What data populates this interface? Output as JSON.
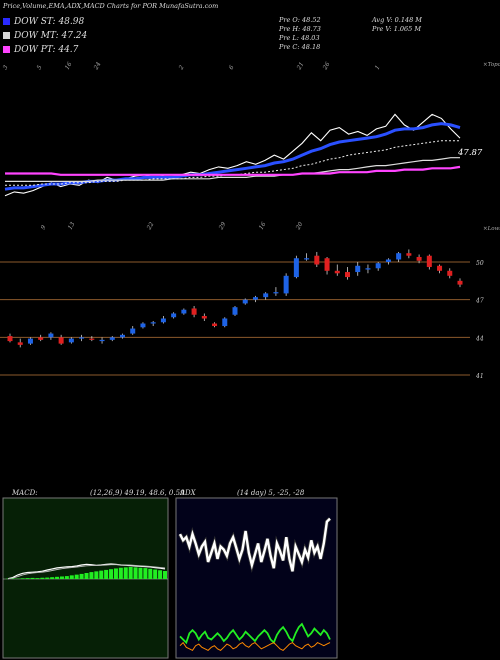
{
  "header": {
    "title": "Price,Volume,EMA,ADX,MACD Charts for POR MunafaSutra.com"
  },
  "legend": [
    {
      "label": "DOW ST: 48.98",
      "color": "#2a2aff"
    },
    {
      "label": "DOW MT: 47.24",
      "color": "#d8d8d8"
    },
    {
      "label": "DOW PT: 44.7",
      "color": "#ff44ff"
    }
  ],
  "prev_info": {
    "open": "Pre O: 48.52",
    "high": "Pre H: 48.73",
    "low": "Pre L: 48.03",
    "close": "Pre C: 48.18",
    "avg_vol": "Avg V: 0.148 M",
    "prev_vol": "Pre V: 1.065 M"
  },
  "colors": {
    "bull": "#1e63e6",
    "bear": "#e02020",
    "ema_short": "#2a50ff",
    "ema_pt": "#ff44ff",
    "hline": "#8b5a2b",
    "macd_fill": "#22ee22",
    "adx_green": "#22ee22",
    "adx_orange": "#ff8800",
    "panel_bg": "#062006",
    "adx_bg": "#02021a"
  },
  "chart_data": [
    {
      "type": "line",
      "panel": "ema",
      "corner_label": "×Topo",
      "last_label": "47.87",
      "date_labels_top": [
        "3",
        "5",
        "16",
        "24",
        "2",
        "6",
        "21",
        "26",
        "1"
      ],
      "date_labels_bottom": [
        "9",
        "13",
        "22",
        "29",
        "16",
        "20"
      ],
      "series": [
        {
          "values": [
            44.2,
            44.5,
            44.4,
            44.6,
            44.9,
            45.2,
            44.9,
            45.1,
            45.0,
            45.4,
            45.2,
            45.6,
            45.4,
            45.5,
            45.7,
            45.8,
            45.6,
            45.7,
            45.5,
            45.8,
            46.0,
            45.9,
            46.2,
            46.4,
            46.3,
            46.5,
            46.8,
            46.6,
            46.9,
            47.3,
            47.0,
            47.6,
            48.2,
            49.0,
            48.4,
            49.2,
            49.4,
            48.9,
            49.1,
            48.8,
            49.3,
            49.5,
            50.4,
            49.6,
            49.2,
            49.8,
            50.4,
            50.1,
            49.3,
            48.6
          ]
        },
        {
          "values": [
            44.7,
            44.8,
            44.8,
            44.9,
            45.0,
            45.1,
            45.1,
            45.2,
            45.2,
            45.3,
            45.3,
            45.4,
            45.4,
            45.5,
            45.5,
            45.6,
            45.6,
            45.6,
            45.6,
            45.7,
            45.8,
            45.8,
            45.9,
            46.0,
            46.1,
            46.2,
            46.3,
            46.4,
            46.5,
            46.7,
            46.8,
            47.0,
            47.3,
            47.6,
            47.8,
            48.1,
            48.3,
            48.4,
            48.5,
            48.6,
            48.7,
            48.9,
            49.2,
            49.3,
            49.3,
            49.4,
            49.6,
            49.7,
            49.6,
            49.4
          ]
        },
        {
          "values": [
            45.0,
            45.0,
            45.0,
            45.0,
            45.1,
            45.1,
            45.1,
            45.2,
            45.2,
            45.2,
            45.3,
            45.3,
            45.3,
            45.4,
            45.4,
            45.4,
            45.5,
            45.5,
            45.5,
            45.5,
            45.6,
            45.6,
            45.7,
            45.7,
            45.8,
            45.8,
            45.9,
            46.0,
            46.0,
            46.1,
            46.2,
            46.3,
            46.5,
            46.6,
            46.8,
            47.0,
            47.1,
            47.3,
            47.4,
            47.5,
            47.6,
            47.7,
            47.9,
            48.0,
            48.1,
            48.2,
            48.3,
            48.4,
            48.4,
            48.4
          ]
        },
        {
          "values": [
            45.3,
            45.3,
            45.3,
            45.3,
            45.3,
            45.3,
            45.3,
            45.3,
            45.3,
            45.3,
            45.4,
            45.4,
            45.4,
            45.4,
            45.4,
            45.4,
            45.4,
            45.4,
            45.5,
            45.5,
            45.5,
            45.5,
            45.5,
            45.6,
            45.6,
            45.6,
            45.6,
            45.7,
            45.7,
            45.7,
            45.8,
            45.8,
            45.9,
            45.9,
            46.0,
            46.1,
            46.2,
            46.2,
            46.3,
            46.4,
            46.5,
            46.5,
            46.6,
            46.7,
            46.8,
            46.9,
            46.9,
            47.0,
            47.1,
            47.1
          ]
        },
        {
          "values": [
            45.9,
            45.9,
            45.9,
            45.9,
            45.9,
            45.9,
            45.8,
            45.8,
            45.8,
            45.8,
            45.8,
            45.8,
            45.8,
            45.8,
            45.8,
            45.8,
            45.8,
            45.8,
            45.8,
            45.8,
            45.8,
            45.8,
            45.8,
            45.8,
            45.8,
            45.8,
            45.8,
            45.8,
            45.8,
            45.8,
            45.8,
            45.8,
            45.9,
            45.9,
            45.9,
            45.9,
            46.0,
            46.0,
            46.0,
            46.0,
            46.1,
            46.1,
            46.1,
            46.2,
            46.2,
            46.2,
            46.3,
            46.3,
            46.3,
            46.4
          ]
        }
      ]
    },
    {
      "type": "candlestick",
      "panel": "price",
      "corner_label": "×Lows",
      "y_tick_labels": [
        "50",
        "47",
        "44",
        "41"
      ],
      "hlines": [
        50,
        47,
        44,
        41
      ],
      "candles": [
        {
          "o": 44.1,
          "h": 44.3,
          "l": 43.6,
          "c": 43.7
        },
        {
          "o": 43.6,
          "h": 43.9,
          "l": 43.2,
          "c": 43.4
        },
        {
          "o": 43.5,
          "h": 44.0,
          "l": 43.4,
          "c": 43.9
        },
        {
          "o": 44.0,
          "h": 44.2,
          "l": 43.7,
          "c": 43.8
        },
        {
          "o": 44.0,
          "h": 44.4,
          "l": 43.8,
          "c": 44.3
        },
        {
          "o": 44.0,
          "h": 44.2,
          "l": 43.4,
          "c": 43.5
        },
        {
          "o": 43.6,
          "h": 44.0,
          "l": 43.5,
          "c": 43.9
        },
        {
          "o": 43.9,
          "h": 44.2,
          "l": 43.7,
          "c": 44.0
        },
        {
          "o": 43.9,
          "h": 44.1,
          "l": 43.7,
          "c": 43.8
        },
        {
          "o": 43.7,
          "h": 44.0,
          "l": 43.5,
          "c": 43.8
        },
        {
          "o": 43.8,
          "h": 44.1,
          "l": 43.7,
          "c": 44.0
        },
        {
          "o": 44.0,
          "h": 44.3,
          "l": 43.9,
          "c": 44.2
        },
        {
          "o": 44.3,
          "h": 44.9,
          "l": 44.2,
          "c": 44.7
        },
        {
          "o": 44.8,
          "h": 45.2,
          "l": 44.7,
          "c": 45.1
        },
        {
          "o": 45.1,
          "h": 45.3,
          "l": 44.9,
          "c": 45.2
        },
        {
          "o": 45.2,
          "h": 45.7,
          "l": 45.1,
          "c": 45.5
        },
        {
          "o": 45.6,
          "h": 46.0,
          "l": 45.5,
          "c": 45.9
        },
        {
          "o": 45.9,
          "h": 46.3,
          "l": 45.8,
          "c": 46.2
        },
        {
          "o": 46.3,
          "h": 46.5,
          "l": 45.6,
          "c": 45.8
        },
        {
          "o": 45.7,
          "h": 45.9,
          "l": 45.3,
          "c": 45.5
        },
        {
          "o": 45.1,
          "h": 45.2,
          "l": 44.8,
          "c": 44.9
        },
        {
          "o": 44.9,
          "h": 45.6,
          "l": 44.8,
          "c": 45.5
        },
        {
          "o": 45.8,
          "h": 46.5,
          "l": 45.7,
          "c": 46.4
        },
        {
          "o": 46.7,
          "h": 47.1,
          "l": 46.6,
          "c": 47.0
        },
        {
          "o": 47.0,
          "h": 47.3,
          "l": 46.8,
          "c": 47.2
        },
        {
          "o": 47.2,
          "h": 47.6,
          "l": 47.0,
          "c": 47.5
        },
        {
          "o": 47.5,
          "h": 48.0,
          "l": 47.3,
          "c": 47.6
        },
        {
          "o": 47.5,
          "h": 49.1,
          "l": 47.3,
          "c": 48.9
        },
        {
          "o": 48.8,
          "h": 50.5,
          "l": 48.7,
          "c": 50.3
        },
        {
          "o": 50.2,
          "h": 50.7,
          "l": 50.1,
          "c": 50.3
        },
        {
          "o": 50.5,
          "h": 50.8,
          "l": 49.6,
          "c": 49.8
        },
        {
          "o": 50.3,
          "h": 50.4,
          "l": 49.0,
          "c": 49.3
        },
        {
          "o": 49.3,
          "h": 49.8,
          "l": 48.9,
          "c": 49.1
        },
        {
          "o": 49.2,
          "h": 49.6,
          "l": 48.6,
          "c": 48.8
        },
        {
          "o": 49.2,
          "h": 50.0,
          "l": 48.9,
          "c": 49.7
        },
        {
          "o": 49.4,
          "h": 49.8,
          "l": 49.1,
          "c": 49.5
        },
        {
          "o": 49.5,
          "h": 50.0,
          "l": 49.3,
          "c": 49.9
        },
        {
          "o": 50.0,
          "h": 50.3,
          "l": 49.8,
          "c": 50.2
        },
        {
          "o": 50.2,
          "h": 50.8,
          "l": 50.0,
          "c": 50.7
        },
        {
          "o": 50.7,
          "h": 51.0,
          "l": 50.3,
          "c": 50.5
        },
        {
          "o": 50.4,
          "h": 50.6,
          "l": 49.9,
          "c": 50.1
        },
        {
          "o": 50.5,
          "h": 50.6,
          "l": 49.4,
          "c": 49.6
        },
        {
          "o": 49.7,
          "h": 49.8,
          "l": 49.1,
          "c": 49.3
        },
        {
          "o": 49.3,
          "h": 49.5,
          "l": 48.7,
          "c": 48.9
        },
        {
          "o": 48.5,
          "h": 48.7,
          "l": 48.0,
          "c": 48.2
        }
      ]
    },
    {
      "type": "area",
      "panel": "macd",
      "label": "MACD:",
      "params": "(12,26,9) 49.19, 48.6, 0.59",
      "histogram": [
        0.02,
        0.03,
        0.02,
        0.04,
        0.05,
        0.06,
        0.05,
        0.07,
        0.08,
        0.1,
        0.12,
        0.14,
        0.16,
        0.2,
        0.24,
        0.28,
        0.33,
        0.38,
        0.42,
        0.46,
        0.5,
        0.54,
        0.58,
        0.62,
        0.64,
        0.66,
        0.64,
        0.62,
        0.6,
        0.56,
        0.52,
        0.48,
        0.44
      ],
      "series": [
        {
          "values": [
            0.02,
            0.1,
            0.25,
            0.35,
            0.4,
            0.42,
            0.44,
            0.48,
            0.55,
            0.62,
            0.68,
            0.72,
            0.74,
            0.76,
            0.8,
            0.86,
            0.9,
            0.88,
            0.84,
            0.86,
            0.9,
            0.92,
            0.9,
            0.86,
            0.84,
            0.82,
            0.8,
            0.78,
            0.76,
            0.74,
            0.7,
            0.66,
            0.62
          ]
        },
        {
          "values": [
            0.02,
            0.06,
            0.15,
            0.25,
            0.32,
            0.36,
            0.39,
            0.42,
            0.46,
            0.52,
            0.58,
            0.63,
            0.67,
            0.7,
            0.73,
            0.77,
            0.81,
            0.83,
            0.83,
            0.84,
            0.86,
            0.88,
            0.88,
            0.87,
            0.86,
            0.85,
            0.83,
            0.81,
            0.79,
            0.77,
            0.74,
            0.71,
            0.68
          ]
        }
      ]
    },
    {
      "type": "line",
      "panel": "adx",
      "label": "ADX",
      "params": "(14 day) 5, -25, -28",
      "series": [
        {
          "values": [
            22,
            26,
            24,
            30,
            22,
            28,
            35,
            30,
            27,
            40,
            34,
            28,
            38,
            30,
            32,
            36,
            28,
            24,
            31,
            38,
            32,
            20,
            34,
            42,
            35,
            28,
            40,
            33,
            25,
            36,
            44,
            28,
            33,
            39,
            24,
            38,
            46,
            30,
            35,
            40,
            32,
            37,
            26,
            34,
            30,
            38,
            28,
            14,
            12
          ]
        },
        {
          "values": [
            88,
            90,
            92,
            86,
            84,
            86,
            90,
            87,
            85,
            89,
            90,
            88,
            86,
            88,
            91,
            89,
            86,
            84,
            87,
            90,
            88,
            85,
            87,
            89,
            91,
            88,
            86,
            84,
            86,
            90,
            92,
            87,
            84,
            82,
            85,
            89,
            91,
            86,
            82,
            80,
            84,
            88,
            86,
            83,
            85,
            87,
            84,
            86,
            90
          ]
        },
        {
          "values": [
            94,
            92,
            95,
            96,
            97,
            94,
            93,
            95,
            96,
            97,
            95,
            94,
            96,
            97,
            95,
            93,
            94,
            96,
            95,
            93,
            92,
            94,
            95,
            93,
            92,
            94,
            96,
            95,
            94,
            93,
            92,
            94,
            96,
            97,
            95,
            93,
            92,
            94,
            95,
            96,
            94,
            93,
            95,
            94,
            92,
            93,
            94,
            93,
            92
          ]
        }
      ]
    }
  ]
}
